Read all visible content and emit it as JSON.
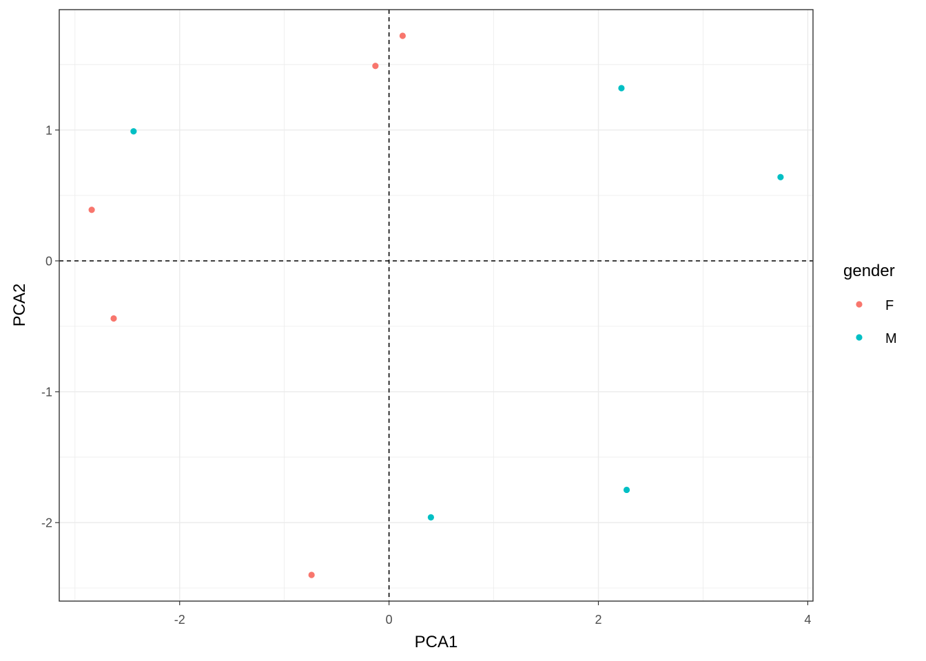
{
  "chart_data": {
    "type": "scatter",
    "xlabel": "PCA1",
    "ylabel": "PCA2",
    "xlim": [
      -3.15,
      4.05
    ],
    "ylim": [
      -2.6,
      1.92
    ],
    "x_ticks": [
      -2,
      0,
      2,
      4
    ],
    "y_ticks": [
      -2,
      -1,
      0,
      1
    ],
    "grid": true,
    "reference_lines": {
      "x": 0,
      "y": 0,
      "style": "dashed"
    },
    "legend": {
      "title": "gender",
      "position": "right"
    },
    "series": [
      {
        "name": "F",
        "color": "#F8766D",
        "points": [
          {
            "x": 0.13,
            "y": 1.72
          },
          {
            "x": -0.13,
            "y": 1.49
          },
          {
            "x": -2.84,
            "y": 0.39
          },
          {
            "x": -2.63,
            "y": -0.44
          },
          {
            "x": -0.74,
            "y": -2.4
          }
        ]
      },
      {
        "name": "M",
        "color": "#00BFC4",
        "points": [
          {
            "x": -2.44,
            "y": 0.99
          },
          {
            "x": 2.22,
            "y": 1.32
          },
          {
            "x": 3.74,
            "y": 0.64
          },
          {
            "x": 2.27,
            "y": -1.75
          },
          {
            "x": 0.4,
            "y": -1.96
          }
        ]
      }
    ]
  }
}
